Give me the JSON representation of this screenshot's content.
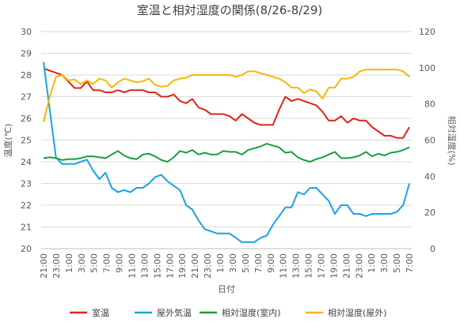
{
  "chart_data": {
    "type": "line",
    "title": "室温と相対湿度の関係(8/26-8/29)",
    "xlabel": "日付",
    "ylabel_left": "温度(℃)",
    "ylabel_right": "相対湿度(%)",
    "ylim_left": [
      20,
      30
    ],
    "ylim_right": [
      0,
      120
    ],
    "yticks_left": [
      "20",
      "21",
      "22",
      "23",
      "24",
      "25",
      "26",
      "27",
      "28",
      "29",
      "30"
    ],
    "yticks_right": [
      "0",
      "20",
      "40",
      "60",
      "80",
      "100",
      "120"
    ],
    "xtick_labels": [
      "21:00",
      "23:00",
      "1:00",
      "3:00",
      "5:00",
      "7:00",
      "9:00",
      "11:00",
      "13:00",
      "15:00",
      "17:00",
      "19:00",
      "21:00",
      "23:00",
      "1:00",
      "3:00",
      "5:00",
      "7:00",
      "9:00",
      "11:00",
      "13:00",
      "15:00",
      "17:00",
      "19:00",
      "21:00",
      "23:00",
      "1:00",
      "3:00",
      "5:00",
      "7:00"
    ],
    "grid": "horizontal",
    "legend_position": "bottom",
    "series": [
      {
        "name": "室温",
        "axis": "left",
        "color": "#e0251b",
        "values": [
          28.3,
          28.2,
          28.1,
          28.0,
          27.7,
          27.4,
          27.4,
          27.7,
          27.3,
          27.3,
          27.2,
          27.2,
          27.3,
          27.2,
          27.3,
          27.3,
          27.3,
          27.2,
          27.2,
          27.0,
          27.0,
          27.1,
          26.8,
          26.7,
          26.9,
          26.5,
          26.4,
          26.2,
          26.2,
          26.2,
          26.1,
          25.9,
          26.2,
          26.0,
          25.8,
          25.7,
          25.7,
          25.7,
          26.4,
          27.0,
          26.8,
          26.9,
          26.8,
          26.7,
          26.6,
          26.3,
          25.9,
          25.9,
          26.1,
          25.8,
          26.0,
          25.9,
          25.9,
          25.6,
          25.4,
          25.2,
          25.2,
          25.1,
          25.1,
          25.6
        ]
      },
      {
        "name": "屋外気温",
        "axis": "left",
        "color": "#1aa3e6",
        "values": [
          28.6,
          26.4,
          24.2,
          23.9,
          23.9,
          23.9,
          24.0,
          24.1,
          23.6,
          23.2,
          23.5,
          22.8,
          22.6,
          22.7,
          22.6,
          22.8,
          22.8,
          23.0,
          23.3,
          23.4,
          23.1,
          22.9,
          22.7,
          22.0,
          21.8,
          21.3,
          20.9,
          20.8,
          20.7,
          20.7,
          20.7,
          20.5,
          20.3,
          20.3,
          20.3,
          20.5,
          20.6,
          21.1,
          21.5,
          21.9,
          21.9,
          22.6,
          22.5,
          22.8,
          22.8,
          22.5,
          22.2,
          21.6,
          22.0,
          22.0,
          21.6,
          21.6,
          21.5,
          21.6,
          21.6,
          21.6,
          21.6,
          21.7,
          22.0,
          23.0
        ]
      },
      {
        "name": "相対湿度(室内)",
        "axis": "right",
        "color": "#1a9e3f",
        "values": [
          50,
          50.5,
          50,
          49,
          49.5,
          49.5,
          50,
          51,
          51,
          50.5,
          50,
          52,
          54,
          51.5,
          50,
          49.5,
          52,
          52.5,
          51,
          49,
          48,
          50.5,
          54,
          53,
          54.5,
          52,
          53,
          52,
          52,
          54,
          53.5,
          53.5,
          52,
          54.5,
          55.5,
          56.5,
          58,
          57,
          56,
          53,
          53.5,
          50.5,
          49,
          48,
          49.5,
          50.5,
          52,
          53.5,
          50,
          50,
          50.5,
          51.5,
          53.5,
          51,
          52.5,
          51.5,
          53,
          53.5,
          54.5,
          56
        ]
      },
      {
        "name": "相対湿度(屋外)",
        "axis": "right",
        "color": "#f5b800",
        "values": [
          70,
          84,
          95,
          96,
          93,
          93.5,
          91,
          93,
          91,
          94,
          93,
          89,
          92,
          94,
          93,
          92,
          92.5,
          94,
          90.5,
          89.5,
          90,
          93,
          94,
          94.5,
          96,
          96,
          96,
          96,
          96,
          96,
          96,
          95,
          96,
          98,
          98,
          97,
          96,
          95,
          94,
          92,
          89,
          89,
          86,
          88,
          87,
          83,
          89,
          89,
          94,
          94,
          95,
          98,
          99,
          99,
          99,
          99,
          99,
          99,
          98,
          95
        ]
      }
    ]
  }
}
